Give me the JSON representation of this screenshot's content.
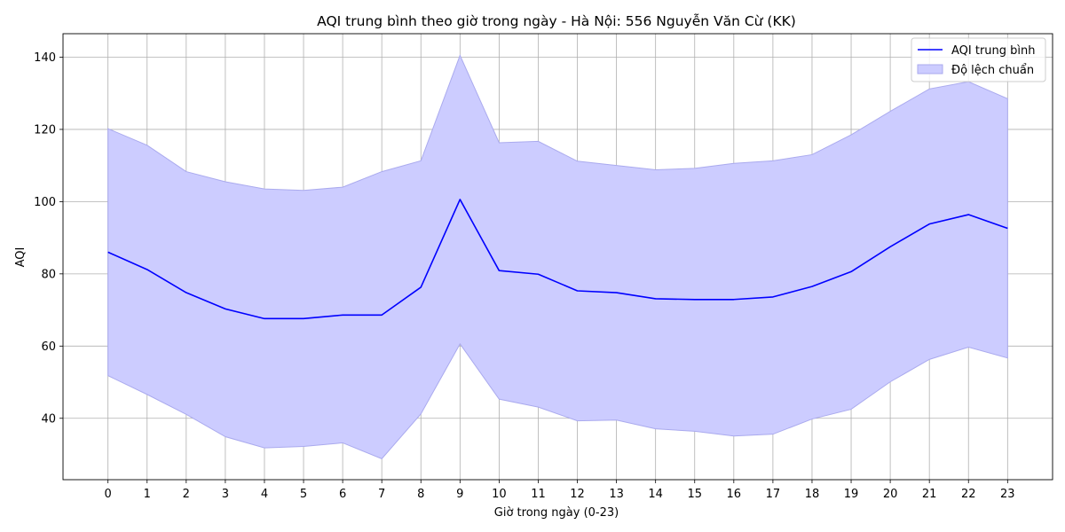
{
  "chart_data": {
    "type": "line",
    "title": "AQI trung bình theo giờ trong ngày - Hà Nội: 556 Nguyễn Văn Cừ (KK)",
    "xlabel": "Giờ trong ngày (0-23)",
    "ylabel": "AQI",
    "x": [
      0,
      1,
      2,
      3,
      4,
      5,
      6,
      7,
      8,
      9,
      10,
      11,
      12,
      13,
      14,
      15,
      16,
      17,
      18,
      19,
      20,
      21,
      22,
      23
    ],
    "xlim": [
      -1.15,
      24.15
    ],
    "ylim": [
      23,
      146.5
    ],
    "yticks": [
      40,
      60,
      80,
      100,
      120,
      140
    ],
    "grid": true,
    "legend_position": "top-right",
    "colors": {
      "line": "#0000ff",
      "band": "#ccccff",
      "band_edge": "#aaaaee",
      "grid": "#b0b0b0"
    },
    "series": [
      {
        "name": "AQI trung bình",
        "kind": "line",
        "values": [
          86.0,
          81.2,
          74.8,
          70.3,
          67.6,
          67.6,
          68.6,
          68.6,
          76.3,
          100.6,
          80.9,
          79.9,
          75.3,
          74.8,
          73.1,
          72.9,
          72.9,
          73.6,
          76.5,
          80.6,
          87.5,
          93.8,
          96.4,
          92.6
        ]
      },
      {
        "name": "Độ lệch chuẩn",
        "kind": "band",
        "upper": [
          120.2,
          115.6,
          108.3,
          105.5,
          103.5,
          103.1,
          104.0,
          108.3,
          111.3,
          140.5,
          116.3,
          116.7,
          111.2,
          110.0,
          108.8,
          109.2,
          110.6,
          111.3,
          113.0,
          118.5,
          125.0,
          131.2,
          133.2,
          128.5
        ],
        "lower": [
          51.8,
          46.6,
          41.1,
          34.9,
          31.8,
          32.2,
          33.2,
          28.8,
          41.2,
          60.6,
          45.3,
          43.1,
          39.3,
          39.5,
          37.1,
          36.4,
          35.1,
          35.6,
          39.8,
          42.5,
          50.1,
          56.3,
          59.7,
          56.7
        ]
      }
    ]
  }
}
